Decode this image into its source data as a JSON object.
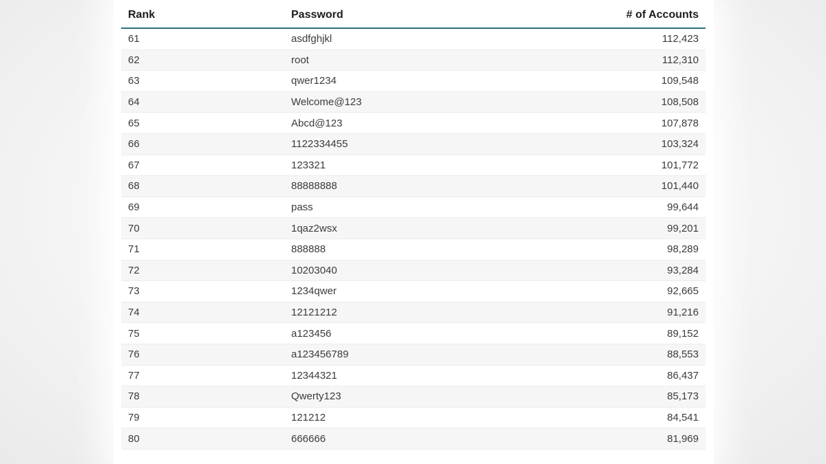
{
  "table": {
    "columns": [
      "Rank",
      "Password",
      "# of Accounts"
    ],
    "rows": [
      {
        "rank": "61",
        "password": "asdfghjkl",
        "accounts": "112,423"
      },
      {
        "rank": "62",
        "password": "root",
        "accounts": "112,310"
      },
      {
        "rank": "63",
        "password": "qwer1234",
        "accounts": "109,548"
      },
      {
        "rank": "64",
        "password": "Welcome@123",
        "accounts": "108,508"
      },
      {
        "rank": "65",
        "password": "Abcd@123",
        "accounts": "107,878"
      },
      {
        "rank": "66",
        "password": "1122334455",
        "accounts": "103,324"
      },
      {
        "rank": "67",
        "password": "123321",
        "accounts": "101,772"
      },
      {
        "rank": "68",
        "password": "88888888",
        "accounts": "101,440"
      },
      {
        "rank": "69",
        "password": "pass",
        "accounts": "99,644"
      },
      {
        "rank": "70",
        "password": "1qaz2wsx",
        "accounts": "99,201"
      },
      {
        "rank": "71",
        "password": "888888",
        "accounts": "98,289"
      },
      {
        "rank": "72",
        "password": "10203040",
        "accounts": "93,284"
      },
      {
        "rank": "73",
        "password": "1234qwer",
        "accounts": "92,665"
      },
      {
        "rank": "74",
        "password": "12121212",
        "accounts": "91,216"
      },
      {
        "rank": "75",
        "password": "a123456",
        "accounts": "89,152"
      },
      {
        "rank": "76",
        "password": "a123456789",
        "accounts": "88,553"
      },
      {
        "rank": "77",
        "password": "12344321",
        "accounts": "86,437"
      },
      {
        "rank": "78",
        "password": "Qwerty123",
        "accounts": "85,173"
      },
      {
        "rank": "79",
        "password": "121212",
        "accounts": "84,541"
      },
      {
        "rank": "80",
        "password": "666666",
        "accounts": "81,969"
      }
    ]
  },
  "colors": {
    "header_underline": "#2d7080",
    "row_stripe": "#f6f6f6",
    "header_text": "#1c1c1c",
    "body_text": "#3b3b3b",
    "panel_background": "#ffffff",
    "page_background": "#eaeaea"
  }
}
